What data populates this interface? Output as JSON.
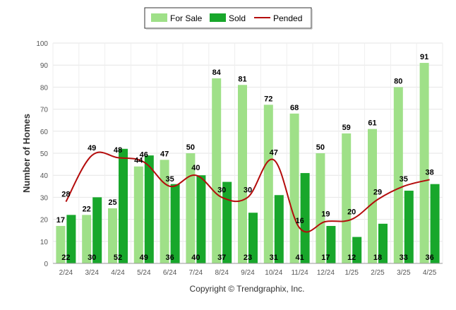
{
  "chart_data": {
    "type": "bar",
    "title": "",
    "xlabel": "",
    "ylabel": "Number of Homes",
    "ylim": [
      0,
      100
    ],
    "yticks": [
      0,
      10,
      20,
      30,
      40,
      50,
      60,
      70,
      80,
      90,
      100
    ],
    "grid": true,
    "legend_position": "top-center",
    "categories": [
      "2/24",
      "3/24",
      "4/24",
      "5/24",
      "6/24",
      "7/24",
      "8/24",
      "9/24",
      "10/24",
      "11/24",
      "12/24",
      "1/25",
      "2/25",
      "3/25",
      "4/25"
    ],
    "series": [
      {
        "name": "For Sale",
        "type": "bar",
        "color": "#9fe088",
        "values": [
          17,
          22,
          25,
          44,
          47,
          50,
          84,
          81,
          72,
          68,
          50,
          59,
          61,
          80,
          91
        ]
      },
      {
        "name": "Sold",
        "type": "bar",
        "color": "#18a72b",
        "values": [
          22,
          30,
          52,
          49,
          36,
          40,
          37,
          23,
          31,
          41,
          17,
          12,
          18,
          33,
          36
        ]
      },
      {
        "name": "Pended",
        "type": "line",
        "color": "#b40c0c",
        "values": [
          28,
          49,
          48,
          46,
          35,
          40,
          30,
          30,
          47,
          16,
          19,
          20,
          29,
          35,
          38
        ]
      }
    ]
  },
  "footer": {
    "copyright": "Copyright © Trendgraphix, Inc."
  }
}
